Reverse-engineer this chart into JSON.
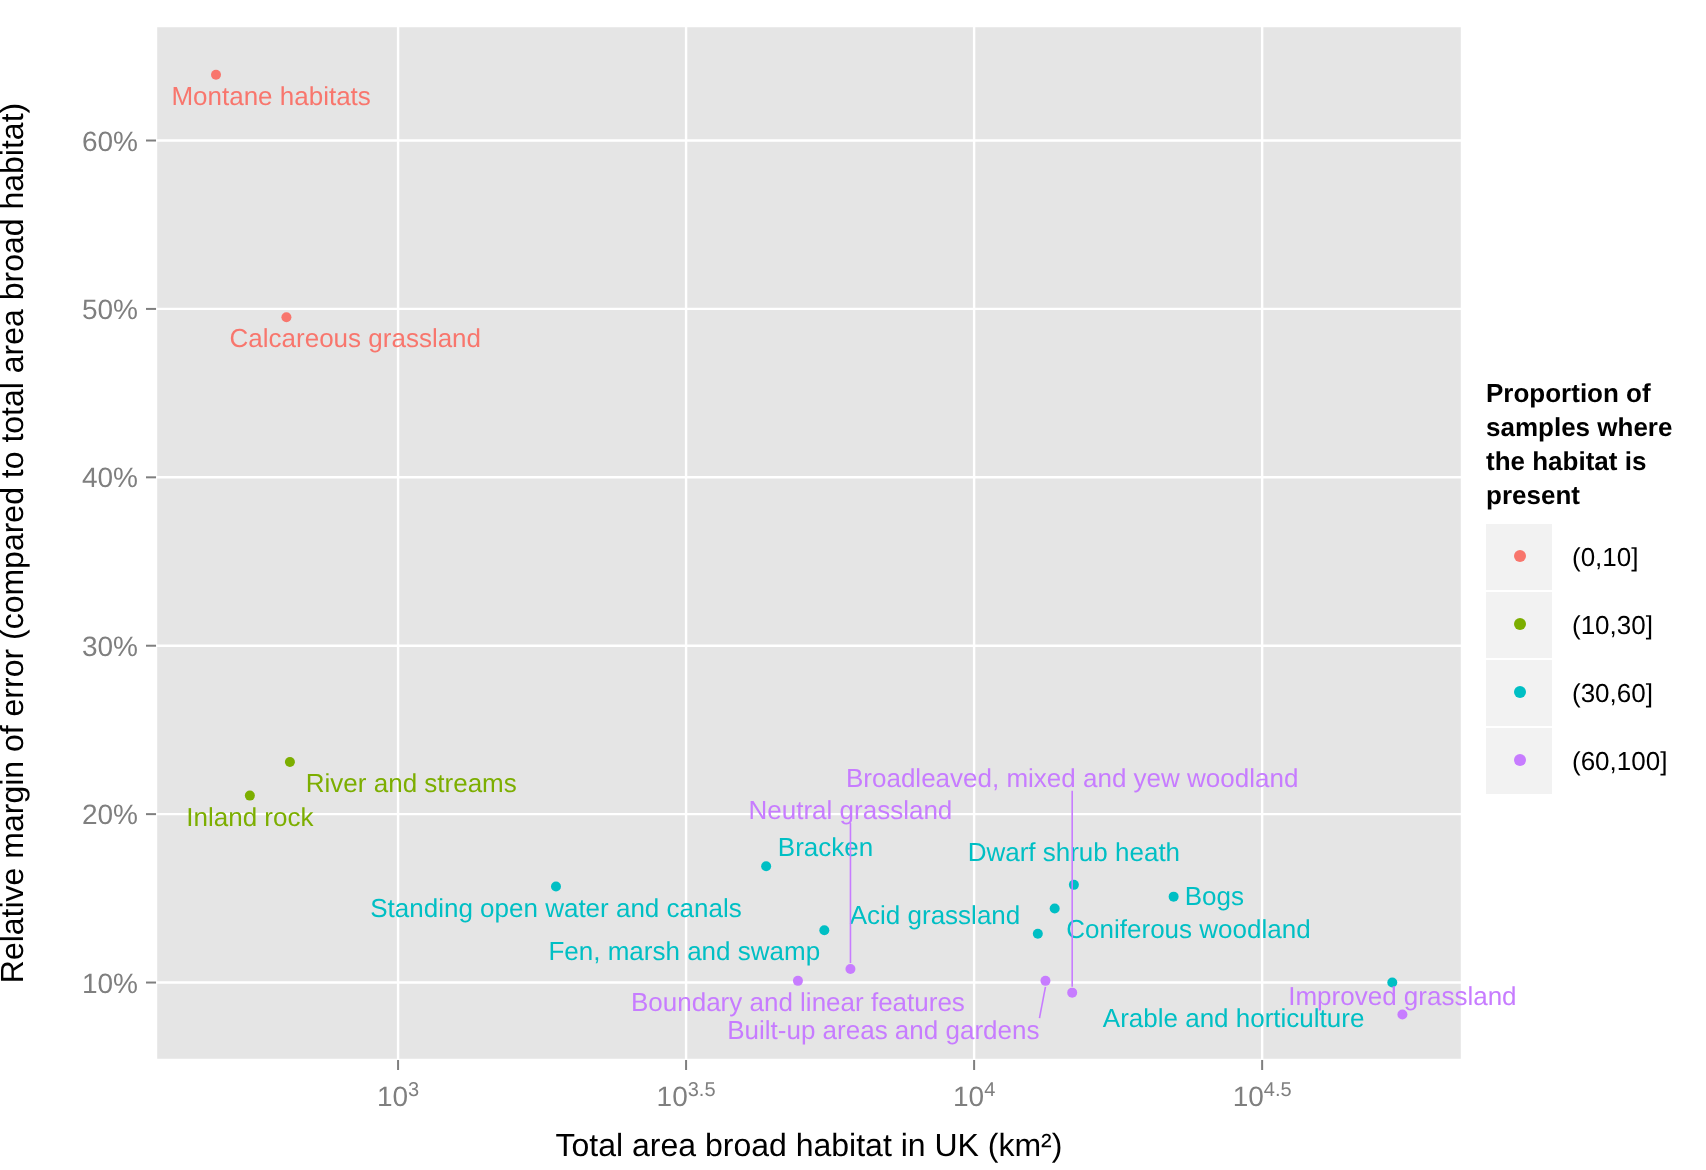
{
  "chart_data": {
    "type": "scatter",
    "xlabel": "Total area broad habitat in UK (km²)",
    "ylabel": "Relative margin of error (compared to total area broad habitat)",
    "legend_title": "Proportion of samples where the habitat is present",
    "log": "x",
    "grid": true,
    "legend": "right",
    "marker": "circle",
    "xlim": [
      380,
      70300
    ],
    "ylim": [
      5.4,
      66.8
    ],
    "xticks": [
      {
        "value": 1000,
        "label": "10$^{3}$"
      },
      {
        "value": 3162,
        "label": "10$^{3.5}$"
      },
      {
        "value": 10000,
        "label": "10$^{4}$"
      },
      {
        "value": 31623,
        "label": "10$^{4.5}$"
      }
    ],
    "yticks": [
      {
        "value": 10,
        "label": "10%"
      },
      {
        "value": 20,
        "label": "20%"
      },
      {
        "value": 30,
        "label": "30%"
      },
      {
        "value": 40,
        "label": "40%"
      },
      {
        "value": 50,
        "label": "50%"
      },
      {
        "value": 60,
        "label": "60%"
      }
    ],
    "series": [
      {
        "name": "(0,10]",
        "color": "#f8766d",
        "x": [
          483,
          640
        ],
        "values": [
          63.9,
          49.5
        ]
      },
      {
        "name": "(10,30]",
        "color": "#7cae00",
        "x": [
          649,
          553
        ],
        "values": [
          23.1,
          21.1
        ]
      },
      {
        "name": "(30,60]",
        "color": "#00bfc4",
        "x": [
          1880,
          4355,
          5495,
          12900,
          13800,
          14900,
          22200,
          53200
        ],
        "values": [
          15.7,
          16.9,
          13.1,
          12.9,
          14.4,
          15.8,
          15.1,
          10.0
        ]
      },
      {
        "name": "(60,100]",
        "color": "#c77cff",
        "x": [
          4945,
          6100,
          13300,
          14800,
          55400
        ],
        "values": [
          10.1,
          10.8,
          10.1,
          9.4,
          8.1
        ]
      }
    ],
    "annotations": [
      {
        "text": "Montane habitats",
        "x": 483,
        "y": 63.9
      },
      {
        "text": "Calcareous grassland",
        "x": 640,
        "y": 49.5
      },
      {
        "text": "River and streams",
        "x": 649,
        "y": 23.1
      },
      {
        "text": "Inland rock",
        "x": 553,
        "y": 21.1
      },
      {
        "text": "Standing open water and canals",
        "x": 1880,
        "y": 15.7
      },
      {
        "text": "Bracken",
        "x": 4355,
        "y": 16.9
      },
      {
        "text": "Fen, marsh and swamp",
        "x": 5495,
        "y": 13.1
      },
      {
        "text": "Acid grassland",
        "x": 12900,
        "y": 12.9
      },
      {
        "text": "Coniferous woodland",
        "x": 13800,
        "y": 14.4
      },
      {
        "text": "Dwarf shrub heath",
        "x": 14900,
        "y": 15.8
      },
      {
        "text": "Bogs",
        "x": 22200,
        "y": 15.1
      },
      {
        "text": "Arable and horticulture",
        "x": 53200,
        "y": 10.0
      },
      {
        "text": "Boundary and linear features",
        "x": 4945,
        "y": 10.1
      },
      {
        "text": "Neutral grassland",
        "x": 6100,
        "y": 10.8
      },
      {
        "text": "Built-up areas and gardens",
        "x": 13300,
        "y": 10.1
      },
      {
        "text": "Broadleaved, mixed and yew woodland",
        "x": 14800,
        "y": 9.4
      },
      {
        "text": "Improved grassland",
        "x": 55400,
        "y": 8.1
      }
    ]
  }
}
